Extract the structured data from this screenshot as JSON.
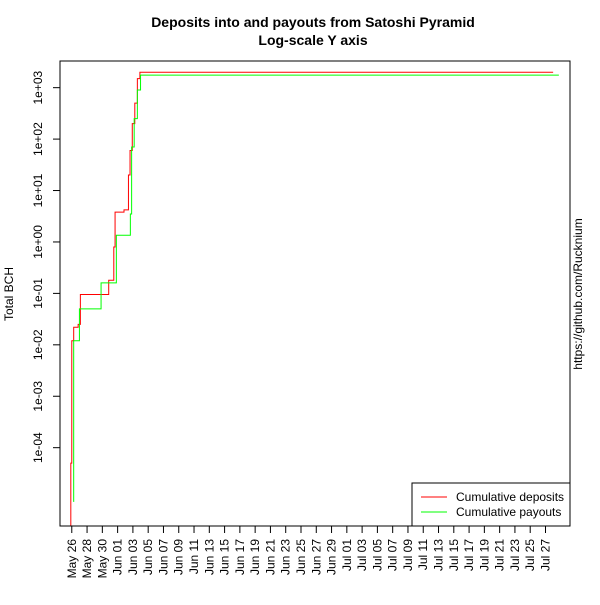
{
  "chart_data": {
    "type": "line",
    "title": "Deposits into and payouts from Satoshi Pyramid",
    "subtitle": "Log-scale Y axis",
    "xlabel": "",
    "ylabel": "Total BCH",
    "side_label": "https://github.com/Rucknium",
    "y_scale": "log10",
    "ylim": [
      3e-06,
      3300
    ],
    "y_ticks": [
      {
        "value": 0.0001,
        "label": "1e-04"
      },
      {
        "value": 0.001,
        "label": "1e-03"
      },
      {
        "value": 0.01,
        "label": "1e-02"
      },
      {
        "value": 0.1,
        "label": "1e-01"
      },
      {
        "value": 1,
        "label": "1e+00"
      },
      {
        "value": 10,
        "label": "1e+01"
      },
      {
        "value": 100,
        "label": "1e+02"
      },
      {
        "value": 1000,
        "label": "1e+03"
      }
    ],
    "x_ticks": [
      {
        "date": "2018-05-26",
        "label": "May 26"
      },
      {
        "date": "2018-05-28",
        "label": "May 28"
      },
      {
        "date": "2018-05-30",
        "label": "May 30"
      },
      {
        "date": "2018-06-01",
        "label": "Jun 01"
      },
      {
        "date": "2018-06-03",
        "label": "Jun 03"
      },
      {
        "date": "2018-06-05",
        "label": "Jun 05"
      },
      {
        "date": "2018-06-07",
        "label": "Jun 07"
      },
      {
        "date": "2018-06-09",
        "label": "Jun 09"
      },
      {
        "date": "2018-06-11",
        "label": "Jun 11"
      },
      {
        "date": "2018-06-13",
        "label": "Jun 13"
      },
      {
        "date": "2018-06-15",
        "label": "Jun 15"
      },
      {
        "date": "2018-06-17",
        "label": "Jun 17"
      },
      {
        "date": "2018-06-19",
        "label": "Jun 19"
      },
      {
        "date": "2018-06-21",
        "label": "Jun 21"
      },
      {
        "date": "2018-06-23",
        "label": "Jun 23"
      },
      {
        "date": "2018-06-25",
        "label": "Jun 25"
      },
      {
        "date": "2018-06-27",
        "label": "Jun 27"
      },
      {
        "date": "2018-06-29",
        "label": "Jun 29"
      },
      {
        "date": "2018-07-01",
        "label": "Jul 01"
      },
      {
        "date": "2018-07-03",
        "label": "Jul 03"
      },
      {
        "date": "2018-07-05",
        "label": "Jul 05"
      },
      {
        "date": "2018-07-07",
        "label": "Jul 07"
      },
      {
        "date": "2018-07-09",
        "label": "Jul 09"
      },
      {
        "date": "2018-07-11",
        "label": "Jul 11"
      },
      {
        "date": "2018-07-13",
        "label": "Jul 13"
      },
      {
        "date": "2018-07-15",
        "label": "Jul 15"
      },
      {
        "date": "2018-07-17",
        "label": "Jul 17"
      },
      {
        "date": "2018-07-19",
        "label": "Jul 19"
      },
      {
        "date": "2018-07-21",
        "label": "Jul 21"
      },
      {
        "date": "2018-07-23",
        "label": "Jul 23"
      },
      {
        "date": "2018-07-25",
        "label": "Jul 25"
      },
      {
        "date": "2018-07-27",
        "label": "Jul 27"
      }
    ],
    "grid": false,
    "legend_position": "bottom-right",
    "series": [
      {
        "name": "Cumulative deposits",
        "color": "#ff0000",
        "step": true,
        "points": [
          {
            "x": "2018-05-25T20:00",
            "y": 3e-06
          },
          {
            "x": "2018-05-25T21:00",
            "y": 5e-05
          },
          {
            "x": "2018-05-26T00:00",
            "y": 0.012
          },
          {
            "x": "2018-05-26T06:00",
            "y": 0.022
          },
          {
            "x": "2018-05-26T20:00",
            "y": 0.025
          },
          {
            "x": "2018-05-27T03:00",
            "y": 0.095
          },
          {
            "x": "2018-05-30T20:00",
            "y": 0.18
          },
          {
            "x": "2018-05-31T12:00",
            "y": 0.8
          },
          {
            "x": "2018-05-31T16:00",
            "y": 3.8
          },
          {
            "x": "2018-06-01T20:00",
            "y": 4.2
          },
          {
            "x": "2018-06-02T10:00",
            "y": 20
          },
          {
            "x": "2018-06-02T15:00",
            "y": 60
          },
          {
            "x": "2018-06-02T22:00",
            "y": 200
          },
          {
            "x": "2018-06-03T06:00",
            "y": 500
          },
          {
            "x": "2018-06-03T14:00",
            "y": 1500
          },
          {
            "x": "2018-06-03T22:00",
            "y": 2000
          },
          {
            "x": "2018-07-28T00:00",
            "y": 2000
          }
        ]
      },
      {
        "name": "Cumulative payouts",
        "color": "#00ff00",
        "step": true,
        "points": [
          {
            "x": "2018-05-26T05:00",
            "y": 9e-06
          },
          {
            "x": "2018-05-26T06:00",
            "y": 0.012
          },
          {
            "x": "2018-05-27T00:00",
            "y": 0.05
          },
          {
            "x": "2018-05-29T20:00",
            "y": 0.16
          },
          {
            "x": "2018-05-31T20:00",
            "y": 1.35
          },
          {
            "x": "2018-06-02T16:00",
            "y": 3.5
          },
          {
            "x": "2018-06-02T20:00",
            "y": 70
          },
          {
            "x": "2018-06-03T04:00",
            "y": 250
          },
          {
            "x": "2018-06-03T14:00",
            "y": 900
          },
          {
            "x": "2018-06-04T00:00",
            "y": 1750
          },
          {
            "x": "2018-07-28T18:00",
            "y": 1750
          }
        ]
      }
    ]
  }
}
